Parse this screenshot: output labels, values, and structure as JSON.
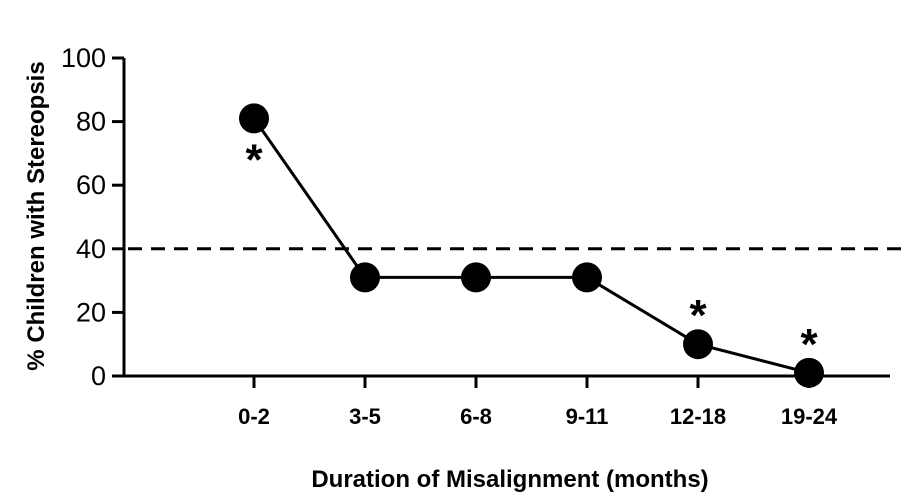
{
  "chart_data": {
    "type": "line",
    "title": "",
    "xlabel": "Duration of Misalignment (months)",
    "ylabel": "% Children with Stereopsis",
    "categories": [
      "0-2",
      "3-5",
      "6-8",
      "9-11",
      "12-18",
      "19-24"
    ],
    "series": [
      {
        "values": [
          81,
          31,
          31,
          31,
          10,
          1
        ]
      }
    ],
    "significance_markers": [
      "*",
      "",
      "",
      "",
      "*",
      "*"
    ],
    "reference_line": {
      "y": 40,
      "style": "dashed"
    },
    "ylim": [
      0,
      100
    ],
    "yticks": [
      "0",
      "20",
      "40",
      "60",
      "80",
      "100"
    ],
    "grid": false,
    "legend": "none",
    "colors": {
      "line": "#000000",
      "marker": "#000000"
    }
  }
}
